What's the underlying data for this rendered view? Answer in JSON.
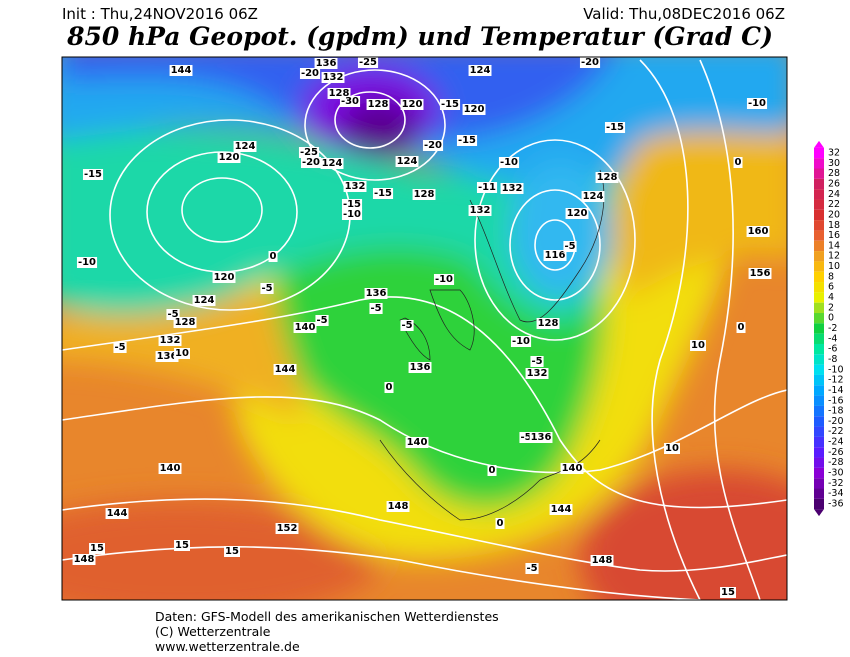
{
  "header": {
    "init": "Init : Thu,24NOV2016 06Z",
    "valid": "Valid: Thu,08DEC2016 06Z",
    "title": "850 hPa Geopot. (gpdm) und Temperatur (Grad C)"
  },
  "colorbar": {
    "labels": [
      32,
      30,
      28,
      26,
      24,
      22,
      20,
      18,
      16,
      14,
      12,
      10,
      8,
      6,
      4,
      2,
      0,
      -2,
      -4,
      -6,
      -8,
      -10,
      -12,
      -14,
      -16,
      -18,
      -20,
      -22,
      -24,
      -26,
      -28,
      -30,
      -32,
      -34,
      -36
    ]
  },
  "map": {
    "contour_labels": [
      144,
      136,
      -20,
      132,
      -25,
      128,
      -30,
      128,
      120,
      -15,
      120,
      124,
      -20,
      -10,
      -15,
      -15,
      124,
      120,
      -25,
      -20,
      124,
      124,
      -20,
      -15,
      -10,
      -11,
      -15,
      132,
      -15,
      -10,
      128,
      132,
      132,
      128,
      124,
      120,
      0,
      160,
      116,
      -5,
      -10,
      0,
      120,
      -10,
      156,
      124,
      -5,
      -5,
      128,
      136,
      -5,
      140,
      -5,
      -5,
      128,
      -10,
      132,
      -5,
      136,
      10,
      0,
      10,
      136,
      -5,
      132,
      144,
      0,
      -5,
      136,
      140,
      10,
      140,
      0,
      140,
      148,
      144,
      144,
      0,
      152,
      148,
      15,
      15,
      15,
      -5,
      148,
      15
    ]
  },
  "footer": {
    "lines": [
      "Daten: GFS-Modell des amerikanischen Wetterdienstes",
      "(C) Wetterzentrale",
      "www.wetterzentrale.de"
    ]
  }
}
